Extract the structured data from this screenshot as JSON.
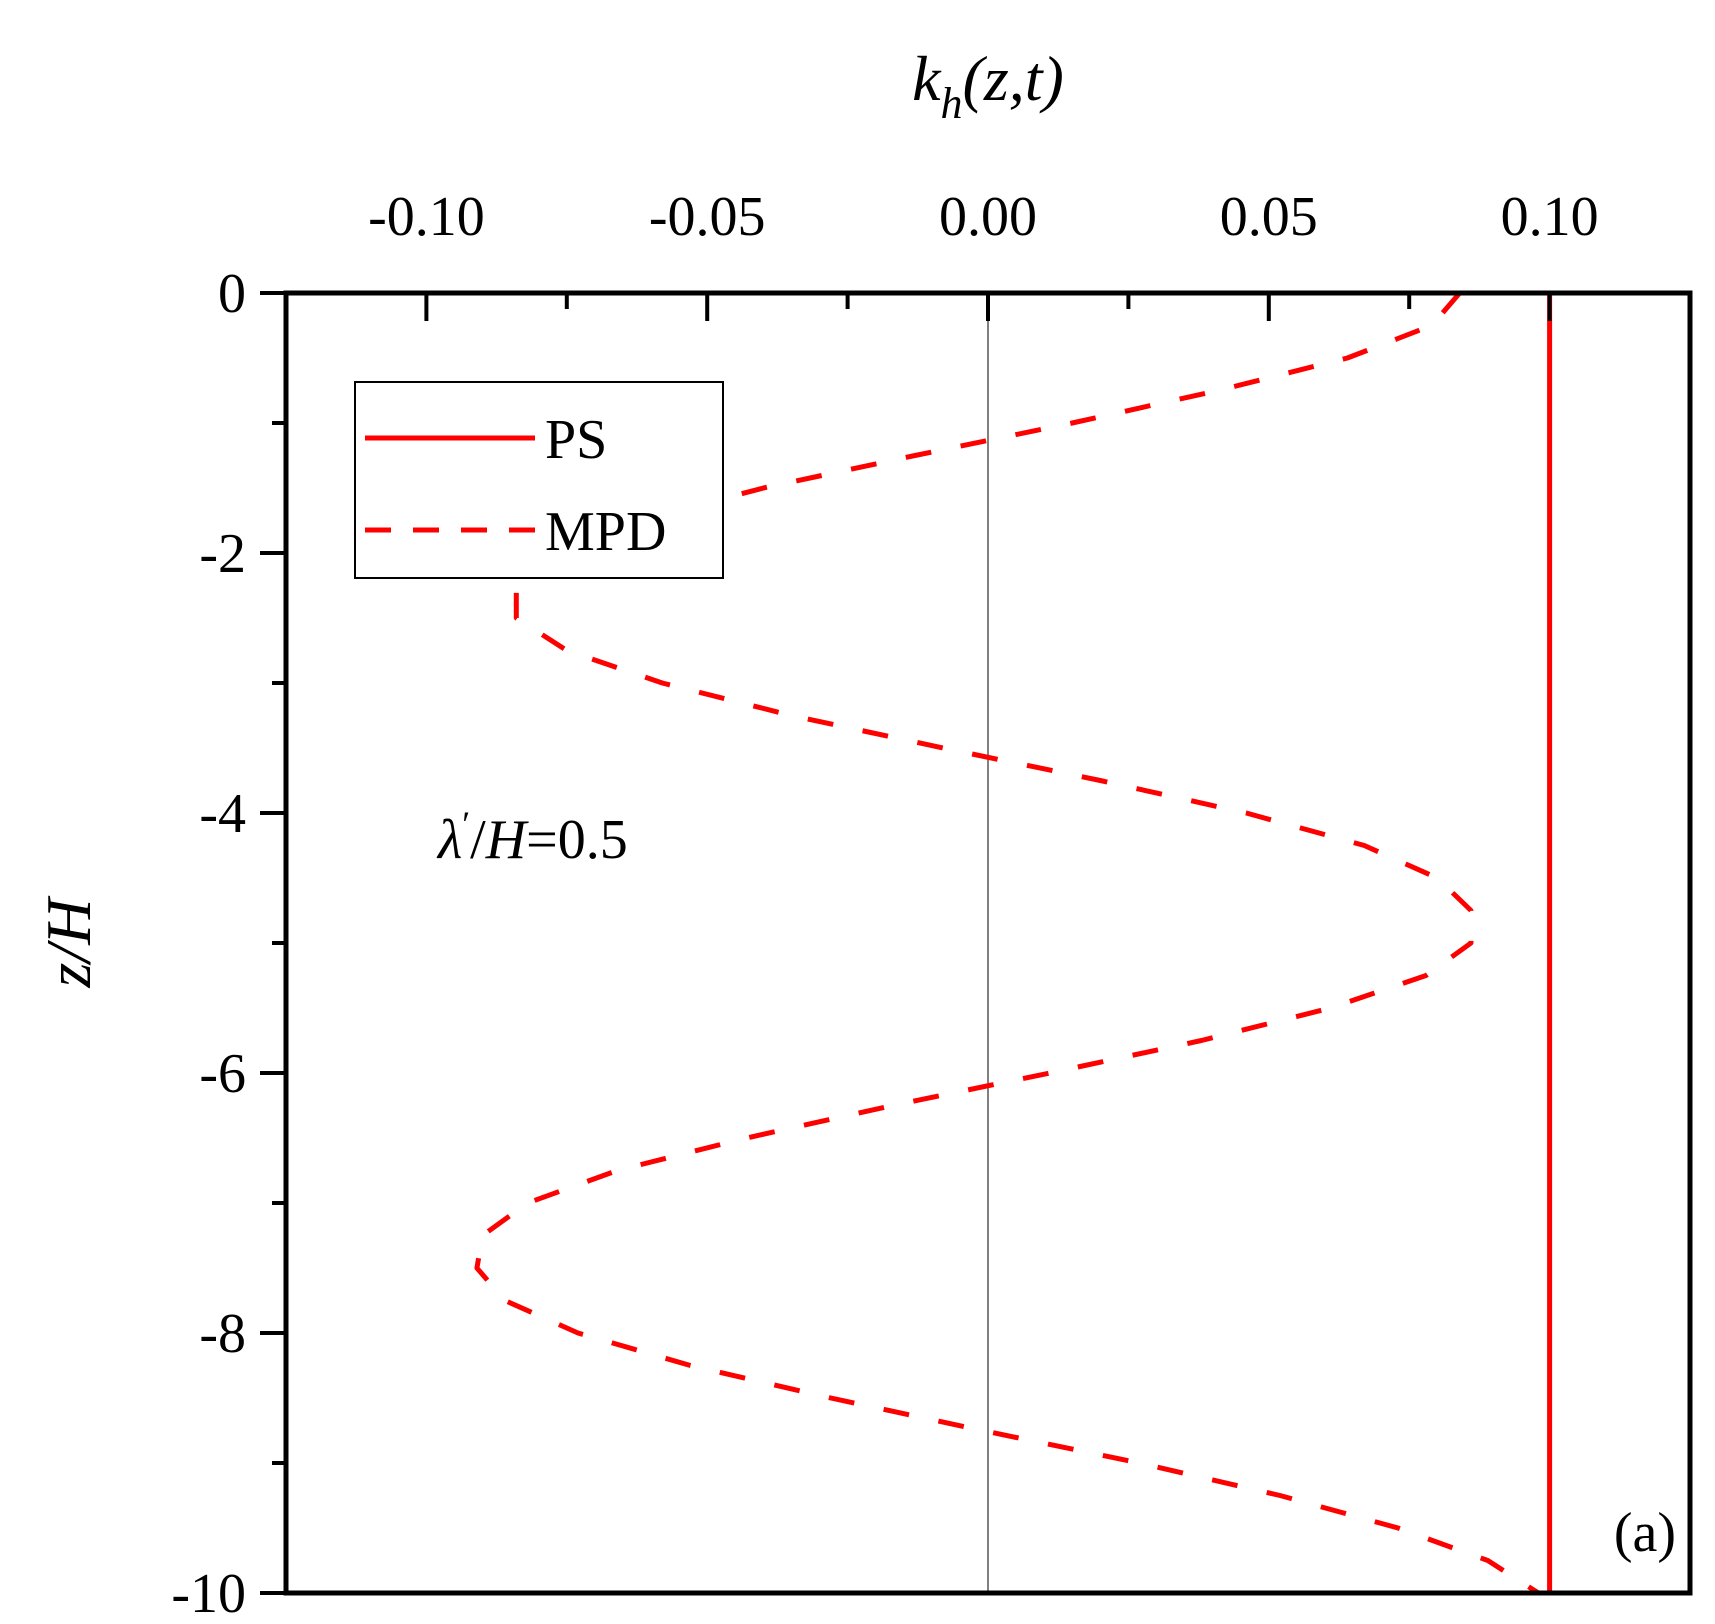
{
  "chart_data": {
    "type": "line",
    "xlabel": {
      "main": "k",
      "sub": "h",
      "tail": "(z,t)"
    },
    "ylabel": "z/H",
    "xlim": [
      -0.125,
      0.125
    ],
    "ylim": [
      -10,
      0
    ],
    "x_axis_position": "top",
    "grid": false,
    "x_ticks": [
      -0.1,
      -0.05,
      0.0,
      0.05,
      0.1
    ],
    "x_tick_labels": [
      "-0.10",
      "-0.05",
      "0.00",
      "0.05",
      "0.10"
    ],
    "y_ticks": [
      0,
      -2,
      -4,
      -6,
      -8,
      -10
    ],
    "y_tick_labels": [
      "0",
      "-2",
      "-4",
      "-6",
      "-8",
      "-10"
    ],
    "y_minor_ticks": [
      -1,
      -3,
      -5,
      -7,
      -9
    ],
    "x_minor_ticks": [
      -0.075,
      -0.025,
      0.025,
      0.075
    ],
    "zero_line_x": 0.0,
    "legend": {
      "position": "top-left",
      "entries": [
        "PS",
        "MPD"
      ]
    },
    "annotation": {
      "lambda": "λ",
      "prime": "′",
      "slash": "/",
      "H": "H",
      "value": "=0.5"
    },
    "panel_label": "(a)",
    "colors": {
      "series": "#ff0000",
      "zero_line": "#808080",
      "axes": "#000000"
    },
    "series": [
      {
        "name": "PS",
        "style": "solid",
        "x": [
          0.1,
          0.1
        ],
        "y": [
          0,
          -10
        ]
      },
      {
        "name": "MPD",
        "style": "dashed",
        "z": [
          0.0,
          -0.25,
          -0.5,
          -0.75,
          -1.0,
          -1.25,
          -1.5,
          -1.75,
          -2.0,
          -2.25,
          -2.5,
          -2.75,
          -3.0,
          -3.25,
          -3.5,
          -3.75,
          -4.0,
          -4.25,
          -4.5,
          -4.75,
          -5.0,
          -5.25,
          -5.5,
          -5.75,
          -6.0,
          -6.25,
          -6.5,
          -6.75,
          -7.0,
          -7.25,
          -7.5,
          -7.75,
          -8.0,
          -8.25,
          -8.5,
          -8.75,
          -9.0,
          -9.25,
          -9.5,
          -9.75,
          -10.0
        ],
        "x": [
          0.084,
          0.079,
          0.064,
          0.041,
          0.015,
          -0.013,
          -0.04,
          -0.062,
          -0.077,
          -0.084,
          -0.084,
          -0.075,
          -0.058,
          -0.035,
          -0.008,
          0.02,
          0.046,
          0.067,
          0.08,
          0.086,
          0.086,
          0.078,
          0.061,
          0.038,
          0.011,
          -0.017,
          -0.043,
          -0.066,
          -0.082,
          -0.09,
          -0.091,
          -0.086,
          -0.073,
          -0.053,
          -0.028,
          -0.001,
          0.027,
          0.052,
          0.073,
          0.089,
          0.098
        ]
      }
    ]
  }
}
